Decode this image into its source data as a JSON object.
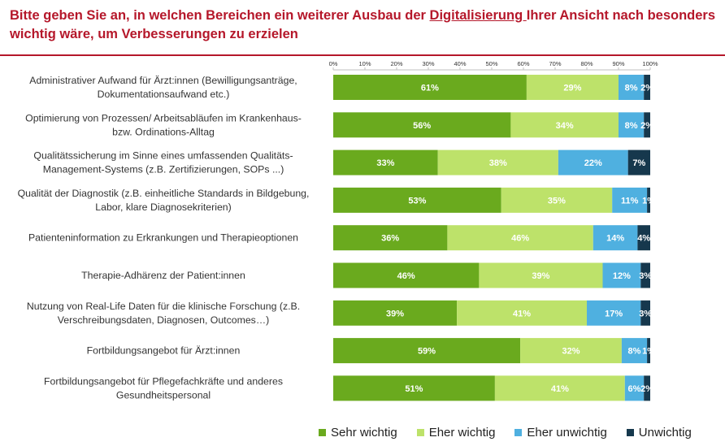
{
  "title": {
    "part1": "Bitte geben Sie an, in welchen Bereichen ein weiterer Ausbau der ",
    "underlined": "Digitalisierung ",
    "part2": "Ihrer Ansicht nach besonders wichtig wäre, um Verbesserungen zu erzielen"
  },
  "chart_data": {
    "type": "bar",
    "orientation": "horizontal",
    "stacked": true,
    "xlim": [
      0,
      100
    ],
    "x_ticks": [
      "0%",
      "10%",
      "20%",
      "30%",
      "40%",
      "50%",
      "60%",
      "70%",
      "80%",
      "90%",
      "100%"
    ],
    "categories": [
      [
        "Administrativer Aufwand für Ärzt:innen  (Bewilligungsanträge,",
        "Dokumentationsaufwand etc.)"
      ],
      [
        "Optimierung von Prozessen/ Arbeitsabläufen im Krankenhaus-",
        "bzw. Ordinations-Alltag"
      ],
      [
        "Qualitätssicherung im Sinne eines umfassenden Qualitäts-",
        "Management-Systems (z.B. Zertifizierungen, SOPs ...)"
      ],
      [
        "Qualität der Diagnostik (z.B. einheitliche Standards in Bildgebung,",
        "Labor, klare Diagnosekriterien)"
      ],
      [
        "Patienteninformation zu Erkrankungen und Therapieoptionen"
      ],
      [
        "Therapie-Adhärenz der Patient:innen"
      ],
      [
        "Nutzung von Real-Life Daten für die klinische Forschung (z.B.",
        "Verschreibungsdaten, Diagnosen, Outcomes…)"
      ],
      [
        "Fortbildungsangebot für Ärzt:innen"
      ],
      [
        "Fortbildungsangebot für Pflegefachkräfte und anderes",
        "Gesundheitspersonal"
      ]
    ],
    "series": [
      {
        "name": "Sehr wichtig",
        "color": "#6aaa1e",
        "label_color": "#ffffff",
        "values": [
          61,
          56,
          33,
          53,
          36,
          46,
          39,
          59,
          51
        ]
      },
      {
        "name": "Eher wichtig",
        "color": "#bde26a",
        "label_color": "#ffffff",
        "values": [
          29,
          34,
          38,
          35,
          46,
          39,
          41,
          32,
          41
        ]
      },
      {
        "name": "Eher unwichtig",
        "color": "#4fb0e0",
        "label_color": "#ffffff",
        "values": [
          8,
          8,
          22,
          11,
          14,
          12,
          17,
          8,
          6
        ]
      },
      {
        "name": "Unwichtig",
        "color": "#16384d",
        "label_color": "#ffffff",
        "values": [
          2,
          2,
          7,
          1,
          4,
          3,
          3,
          1,
          2
        ]
      }
    ],
    "legend_position": "bottom",
    "grid": false
  }
}
